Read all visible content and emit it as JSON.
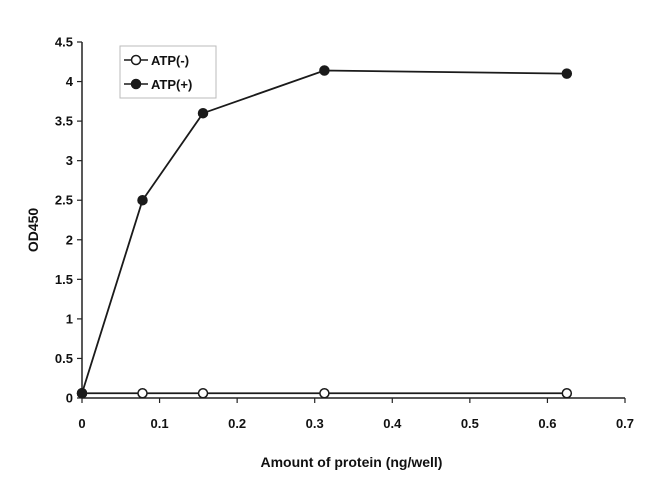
{
  "chart_data": {
    "type": "line",
    "xlabel": "Amount of protein (ng/well)",
    "ylabel": "OD450",
    "xlim": [
      0,
      0.7
    ],
    "ylim": [
      0,
      4.5
    ],
    "x_ticks": [
      "0",
      "0.1",
      "0.2",
      "0.3",
      "0.4",
      "0.5",
      "0.6",
      "0.7"
    ],
    "y_ticks": [
      "0",
      "0.5",
      "1",
      "1.5",
      "2",
      "2.5",
      "3",
      "3.5",
      "4",
      "4.5"
    ],
    "grid": false,
    "legend_position": "top-left",
    "series": [
      {
        "name": "ATP(-)",
        "marker": "open-circle",
        "color": "#1a1a1a",
        "x": [
          0,
          0.078,
          0.156,
          0.3125,
          0.625
        ],
        "y": [
          0.06,
          0.06,
          0.06,
          0.06,
          0.06
        ]
      },
      {
        "name": "ATP(+)",
        "marker": "filled-circle",
        "color": "#1a1a1a",
        "x": [
          0,
          0.078,
          0.156,
          0.3125,
          0.625
        ],
        "y": [
          0.06,
          2.5,
          3.6,
          4.14,
          4.1
        ]
      }
    ]
  }
}
